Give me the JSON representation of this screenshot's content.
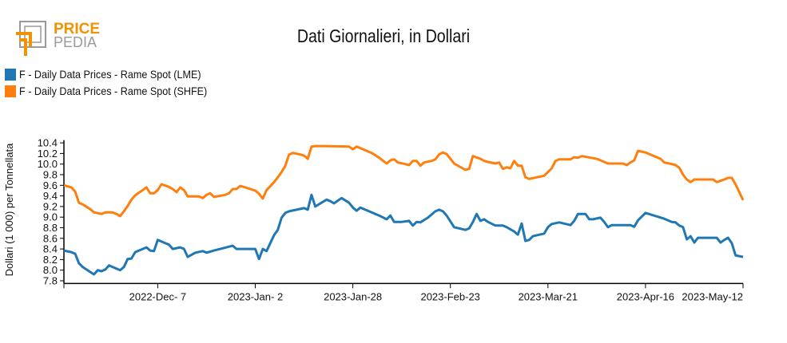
{
  "logo": {
    "text_top": "PRICE",
    "text_bottom": "PEDIA"
  },
  "chart_data": {
    "type": "line",
    "title": "Dati Giornalieri, in Dollari",
    "ylabel": "Dollari (1 000) per Tonnellata",
    "xlabel": "",
    "xlim": [
      "2022-11-12",
      "2023-05-12"
    ],
    "ylim": [
      7.75,
      10.45
    ],
    "yticks": [
      "7.8",
      "8.0",
      "8.2",
      "8.4",
      "8.6",
      "8.8",
      "9.0",
      "9.2",
      "9.4",
      "9.6",
      "9.8",
      "10.0",
      "10.2",
      "10.4"
    ],
    "xticks": [
      {
        "date": "2022-12-07",
        "label": "2022-Dec- 7"
      },
      {
        "date": "2023-01-02",
        "label": "2023-Jan- 2"
      },
      {
        "date": "2023-01-28",
        "label": "2023-Jan-28"
      },
      {
        "date": "2023-02-23",
        "label": "2023-Feb-23"
      },
      {
        "date": "2023-03-21",
        "label": "2023-Mar-21"
      },
      {
        "date": "2023-04-16",
        "label": "2023-Apr-16"
      },
      {
        "date": "2023-05-12",
        "label": "2023-May-12"
      }
    ],
    "grid": false,
    "legend_position": "top-left",
    "series": [
      {
        "name": "F - Daily Data Prices - Rame Spot (LME)",
        "color": "#1f77b4",
        "points": [
          [
            "2022-11-12",
            8.37
          ],
          [
            "2022-11-14",
            8.34
          ],
          [
            "2022-11-15",
            8.31
          ],
          [
            "2022-11-16",
            8.13
          ],
          [
            "2022-11-17",
            8.06
          ],
          [
            "2022-11-20",
            7.92
          ],
          [
            "2022-11-21",
            8.0
          ],
          [
            "2022-11-22",
            7.98
          ],
          [
            "2022-11-23",
            8.01
          ],
          [
            "2022-11-24",
            8.09
          ],
          [
            "2022-11-27",
            8.0
          ],
          [
            "2022-11-28",
            8.06
          ],
          [
            "2022-11-29",
            8.21
          ],
          [
            "2022-11-30",
            8.22
          ],
          [
            "2022-12-01",
            8.34
          ],
          [
            "2022-12-03",
            8.4
          ],
          [
            "2022-12-04",
            8.43
          ],
          [
            "2022-12-05",
            8.37
          ],
          [
            "2022-12-06",
            8.36
          ],
          [
            "2022-12-07",
            8.57
          ],
          [
            "2022-12-10",
            8.48
          ],
          [
            "2022-12-11",
            8.4
          ],
          [
            "2022-12-13",
            8.43
          ],
          [
            "2022-12-14",
            8.4
          ],
          [
            "2022-12-15",
            8.25
          ],
          [
            "2022-12-17",
            8.33
          ],
          [
            "2022-12-19",
            8.36
          ],
          [
            "2022-12-20",
            8.33
          ],
          [
            "2022-12-22",
            8.37
          ],
          [
            "2022-12-27",
            8.46
          ],
          [
            "2022-12-28",
            8.4
          ],
          [
            "2023-01-02",
            8.4
          ],
          [
            "2023-01-03",
            8.21
          ],
          [
            "2023-01-04",
            8.4
          ],
          [
            "2023-01-05",
            8.36
          ],
          [
            "2023-01-07",
            8.66
          ],
          [
            "2023-01-08",
            8.76
          ],
          [
            "2023-01-09",
            8.99
          ],
          [
            "2023-01-10",
            9.08
          ],
          [
            "2023-01-11",
            9.11
          ],
          [
            "2023-01-13",
            9.14
          ],
          [
            "2023-01-15",
            9.17
          ],
          [
            "2023-01-16",
            9.14
          ],
          [
            "2023-01-17",
            9.42
          ],
          [
            "2023-01-18",
            9.2
          ],
          [
            "2023-01-21",
            9.33
          ],
          [
            "2023-01-22",
            9.3
          ],
          [
            "2023-01-23",
            9.26
          ],
          [
            "2023-01-25",
            9.36
          ],
          [
            "2023-01-27",
            9.27
          ],
          [
            "2023-01-28",
            9.18
          ],
          [
            "2023-01-29",
            9.12
          ],
          [
            "2023-01-30",
            9.18
          ],
          [
            "2023-02-04",
            9.03
          ],
          [
            "2023-02-06",
            8.96
          ],
          [
            "2023-02-07",
            9.03
          ],
          [
            "2023-02-08",
            8.91
          ],
          [
            "2023-02-10",
            8.91
          ],
          [
            "2023-02-12",
            8.93
          ],
          [
            "2023-02-13",
            8.84
          ],
          [
            "2023-02-14",
            8.91
          ],
          [
            "2023-02-15",
            8.9
          ],
          [
            "2023-02-17",
            8.99
          ],
          [
            "2023-02-19",
            9.11
          ],
          [
            "2023-02-20",
            9.14
          ],
          [
            "2023-02-21",
            9.11
          ],
          [
            "2023-02-22",
            9.03
          ],
          [
            "2023-02-24",
            8.81
          ],
          [
            "2023-02-27",
            8.76
          ],
          [
            "2023-02-28",
            8.79
          ],
          [
            "2023-03-01",
            8.91
          ],
          [
            "2023-03-02",
            9.06
          ],
          [
            "2023-03-03",
            8.93
          ],
          [
            "2023-03-04",
            8.96
          ],
          [
            "2023-03-05",
            8.91
          ],
          [
            "2023-03-07",
            8.84
          ],
          [
            "2023-03-09",
            8.84
          ],
          [
            "2023-03-10",
            8.81
          ],
          [
            "2023-03-12",
            8.73
          ],
          [
            "2023-03-13",
            8.67
          ],
          [
            "2023-03-14",
            8.88
          ],
          [
            "2023-03-15",
            8.55
          ],
          [
            "2023-03-16",
            8.57
          ],
          [
            "2023-03-17",
            8.64
          ],
          [
            "2023-03-20",
            8.69
          ],
          [
            "2023-03-21",
            8.81
          ],
          [
            "2023-03-22",
            8.87
          ],
          [
            "2023-03-24",
            8.9
          ],
          [
            "2023-03-27",
            8.85
          ],
          [
            "2023-03-28",
            8.93
          ],
          [
            "2023-03-29",
            9.06
          ],
          [
            "2023-03-31",
            9.06
          ],
          [
            "2023-04-01",
            8.96
          ],
          [
            "2023-04-02",
            8.96
          ],
          [
            "2023-04-04",
            8.99
          ],
          [
            "2023-04-05",
            8.91
          ],
          [
            "2023-04-06",
            8.81
          ],
          [
            "2023-04-07",
            8.85
          ],
          [
            "2023-04-12",
            8.85
          ],
          [
            "2023-04-13",
            8.82
          ],
          [
            "2023-04-14",
            8.94
          ],
          [
            "2023-04-16",
            9.08
          ],
          [
            "2023-04-21",
            8.97
          ],
          [
            "2023-04-22",
            8.94
          ],
          [
            "2023-04-23",
            8.91
          ],
          [
            "2023-04-24",
            8.9
          ],
          [
            "2023-04-25",
            8.84
          ],
          [
            "2023-04-26",
            8.81
          ],
          [
            "2023-04-27",
            8.58
          ],
          [
            "2023-04-28",
            8.64
          ],
          [
            "2023-04-29",
            8.52
          ],
          [
            "2023-04-30",
            8.61
          ],
          [
            "2023-05-05",
            8.61
          ],
          [
            "2023-05-06",
            8.52
          ],
          [
            "2023-05-07",
            8.57
          ],
          [
            "2023-05-08",
            8.61
          ],
          [
            "2023-05-09",
            8.51
          ],
          [
            "2023-05-10",
            8.28
          ],
          [
            "2023-05-12",
            8.25
          ]
        ]
      },
      {
        "name": "F - Daily Data Prices - Rame Spot (SHFE)",
        "color": "#ff7f0e",
        "points": [
          [
            "2022-11-12",
            9.6
          ],
          [
            "2022-11-14",
            9.56
          ],
          [
            "2022-11-15",
            9.48
          ],
          [
            "2022-11-16",
            9.27
          ],
          [
            "2022-11-17",
            9.24
          ],
          [
            "2022-11-19",
            9.15
          ],
          [
            "2022-11-20",
            9.09
          ],
          [
            "2022-11-22",
            9.06
          ],
          [
            "2022-11-23",
            9.09
          ],
          [
            "2022-11-25",
            9.09
          ],
          [
            "2022-11-26",
            9.06
          ],
          [
            "2022-11-27",
            9.02
          ],
          [
            "2022-11-28",
            9.11
          ],
          [
            "2022-11-29",
            9.21
          ],
          [
            "2022-11-30",
            9.33
          ],
          [
            "2022-12-01",
            9.41
          ],
          [
            "2022-12-03",
            9.51
          ],
          [
            "2022-12-04",
            9.56
          ],
          [
            "2022-12-05",
            9.45
          ],
          [
            "2022-12-06",
            9.45
          ],
          [
            "2022-12-07",
            9.51
          ],
          [
            "2022-12-08",
            9.62
          ],
          [
            "2022-12-10",
            9.57
          ],
          [
            "2022-12-11",
            9.53
          ],
          [
            "2022-12-12",
            9.47
          ],
          [
            "2022-12-13",
            9.56
          ],
          [
            "2022-12-14",
            9.51
          ],
          [
            "2022-12-15",
            9.39
          ],
          [
            "2022-12-18",
            9.39
          ],
          [
            "2022-12-19",
            9.36
          ],
          [
            "2022-12-20",
            9.42
          ],
          [
            "2022-12-21",
            9.45
          ],
          [
            "2022-12-22",
            9.38
          ],
          [
            "2022-12-25",
            9.42
          ],
          [
            "2022-12-26",
            9.45
          ],
          [
            "2022-12-27",
            9.53
          ],
          [
            "2022-12-28",
            9.53
          ],
          [
            "2022-12-29",
            9.59
          ],
          [
            "2023-01-02",
            9.5
          ],
          [
            "2023-01-03",
            9.44
          ],
          [
            "2023-01-04",
            9.35
          ],
          [
            "2023-01-05",
            9.51
          ],
          [
            "2023-01-07",
            9.66
          ],
          [
            "2023-01-08",
            9.75
          ],
          [
            "2023-01-09",
            9.85
          ],
          [
            "2023-01-10",
            9.97
          ],
          [
            "2023-01-11",
            10.18
          ],
          [
            "2023-01-12",
            10.21
          ],
          [
            "2023-01-14",
            10.18
          ],
          [
            "2023-01-15",
            10.16
          ],
          [
            "2023-01-16",
            10.1
          ],
          [
            "2023-01-17",
            10.33
          ],
          [
            "2023-01-18",
            10.34
          ],
          [
            "2023-01-21",
            10.34
          ],
          [
            "2023-01-27",
            10.33
          ],
          [
            "2023-01-28",
            10.28
          ],
          [
            "2023-01-29",
            10.33
          ],
          [
            "2023-01-30",
            10.3
          ],
          [
            "2023-02-02",
            10.21
          ],
          [
            "2023-02-04",
            10.12
          ],
          [
            "2023-02-06",
            10.01
          ],
          [
            "2023-02-07",
            10.07
          ],
          [
            "2023-02-08",
            10.09
          ],
          [
            "2023-02-09",
            10.03
          ],
          [
            "2023-02-11",
            10.0
          ],
          [
            "2023-02-12",
            9.98
          ],
          [
            "2023-02-13",
            10.06
          ],
          [
            "2023-02-14",
            10.06
          ],
          [
            "2023-02-15",
            9.97
          ],
          [
            "2023-02-16",
            10.03
          ],
          [
            "2023-02-18",
            10.06
          ],
          [
            "2023-02-19",
            10.09
          ],
          [
            "2023-02-20",
            10.18
          ],
          [
            "2023-02-21",
            10.22
          ],
          [
            "2023-02-22",
            10.19
          ],
          [
            "2023-02-24",
            10.01
          ],
          [
            "2023-02-27",
            9.89
          ],
          [
            "2023-02-28",
            9.91
          ],
          [
            "2023-03-01",
            10.15
          ],
          [
            "2023-03-03",
            10.1
          ],
          [
            "2023-03-04",
            10.06
          ],
          [
            "2023-03-05",
            10.04
          ],
          [
            "2023-03-07",
            10.01
          ],
          [
            "2023-03-08",
            10.03
          ],
          [
            "2023-03-09",
            9.91
          ],
          [
            "2023-03-10",
            9.94
          ],
          [
            "2023-03-11",
            9.92
          ],
          [
            "2023-03-12",
            10.06
          ],
          [
            "2023-03-13",
            9.97
          ],
          [
            "2023-03-14",
            9.97
          ],
          [
            "2023-03-15",
            9.75
          ],
          [
            "2023-03-16",
            9.72
          ],
          [
            "2023-03-20",
            9.78
          ],
          [
            "2023-03-21",
            9.85
          ],
          [
            "2023-03-22",
            9.92
          ],
          [
            "2023-03-23",
            10.06
          ],
          [
            "2023-03-24",
            10.09
          ],
          [
            "2023-03-27",
            10.09
          ],
          [
            "2023-03-28",
            10.13
          ],
          [
            "2023-03-29",
            10.12
          ],
          [
            "2023-03-30",
            10.15
          ],
          [
            "2023-04-03",
            10.1
          ],
          [
            "2023-04-04",
            10.07
          ],
          [
            "2023-04-05",
            10.04
          ],
          [
            "2023-04-06",
            10.01
          ],
          [
            "2023-04-10",
            10.01
          ],
          [
            "2023-04-11",
            9.98
          ],
          [
            "2023-04-12",
            10.03
          ],
          [
            "2023-04-13",
            10.07
          ],
          [
            "2023-04-14",
            10.25
          ],
          [
            "2023-04-16",
            10.22
          ],
          [
            "2023-04-17",
            10.19
          ],
          [
            "2023-04-19",
            10.13
          ],
          [
            "2023-04-20",
            10.1
          ],
          [
            "2023-04-21",
            10.03
          ],
          [
            "2023-04-23",
            10.0
          ],
          [
            "2023-04-24",
            9.98
          ],
          [
            "2023-04-25",
            9.93
          ],
          [
            "2023-04-26",
            9.8
          ],
          [
            "2023-04-27",
            9.71
          ],
          [
            "2023-04-28",
            9.66
          ],
          [
            "2023-04-29",
            9.71
          ],
          [
            "2023-05-03",
            9.71
          ],
          [
            "2023-05-04",
            9.71
          ],
          [
            "2023-05-05",
            9.66
          ],
          [
            "2023-05-07",
            9.71
          ],
          [
            "2023-05-08",
            9.74
          ],
          [
            "2023-05-09",
            9.74
          ],
          [
            "2023-05-10",
            9.62
          ],
          [
            "2023-05-12",
            9.32
          ]
        ]
      }
    ]
  }
}
